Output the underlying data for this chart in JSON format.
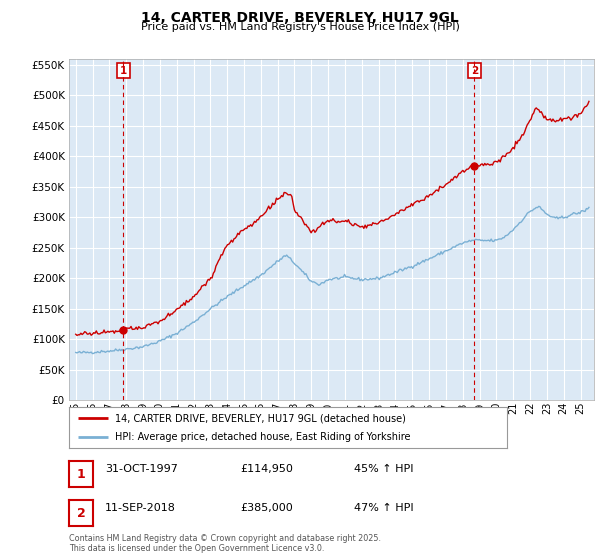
{
  "title": "14, CARTER DRIVE, BEVERLEY, HU17 9GL",
  "subtitle": "Price paid vs. HM Land Registry's House Price Index (HPI)",
  "sale1": {
    "date": "31-OCT-1997",
    "price": 114950,
    "label": "1",
    "year": 1997.83
  },
  "sale2": {
    "date": "11-SEP-2018",
    "price": 385000,
    "label": "2",
    "year": 2018.69
  },
  "legend_line1": "14, CARTER DRIVE, BEVERLEY, HU17 9GL (detached house)",
  "legend_line2": "HPI: Average price, detached house, East Riding of Yorkshire",
  "table": [
    [
      "1",
      "31-OCT-1997",
      "£114,950",
      "45% ↑ HPI"
    ],
    [
      "2",
      "11-SEP-2018",
      "£385,000",
      "47% ↑ HPI"
    ]
  ],
  "footer": "Contains HM Land Registry data © Crown copyright and database right 2025.\nThis data is licensed under the Open Government Licence v3.0.",
  "red_color": "#cc0000",
  "blue_color": "#7ab0d4",
  "chart_bg": "#dce9f5",
  "background_color": "#ffffff",
  "grid_color": "#ffffff",
  "ylim": [
    0,
    560000
  ],
  "xlim_start": 1994.6,
  "xlim_end": 2025.8
}
